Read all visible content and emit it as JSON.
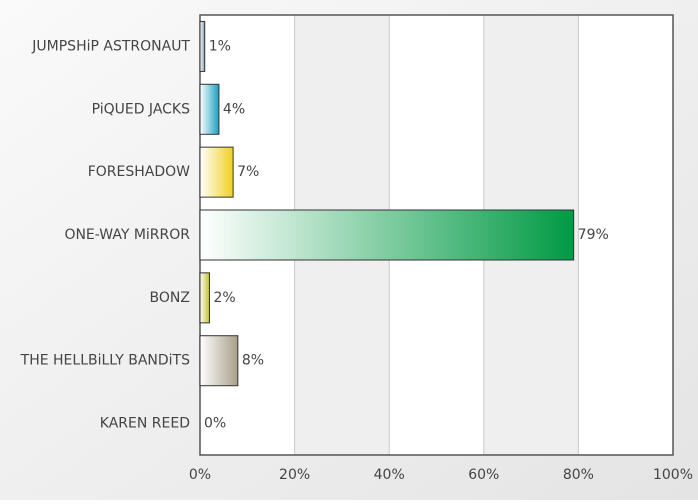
{
  "chart_data": {
    "type": "hbar",
    "categories": [
      "JUMPSHiP ASTRONAUT",
      "PiQUED JACKS",
      "FORESHADOW",
      "ONE-WAY MiRROR",
      "BONZ",
      "THE HELLBiLLY BANDiTS",
      "KAREN REED"
    ],
    "values": [
      1,
      4,
      7,
      79,
      2,
      8,
      0
    ],
    "value_labels": [
      "1%",
      "4%",
      "7%",
      "79%",
      "2%",
      "8%",
      "0%"
    ],
    "colors": [
      "#7f9db0",
      "#1aa0c0",
      "#f0d020",
      "#009a44",
      "#c0c030",
      "#a89f88",
      "#999999"
    ],
    "xlim": [
      0,
      100
    ],
    "xticks": [
      {
        "value": 0,
        "label": "0%"
      },
      {
        "value": 20,
        "label": "20%"
      },
      {
        "value": 40,
        "label": "40%"
      },
      {
        "value": 60,
        "label": "60%"
      },
      {
        "value": 80,
        "label": "80%"
      },
      {
        "value": 100,
        "label": "100%"
      }
    ],
    "grid": true
  }
}
